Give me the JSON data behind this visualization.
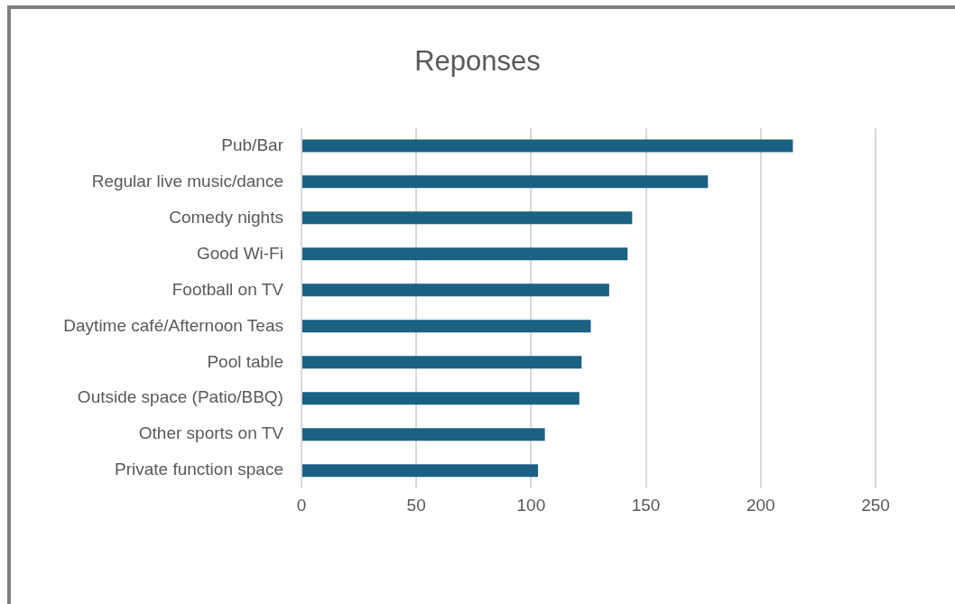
{
  "chart_data": {
    "type": "bar",
    "orientation": "horizontal",
    "title": "Reponses",
    "categories": [
      "Pub/Bar",
      "Regular live music/dance",
      "Comedy nights",
      "Good Wi-Fi",
      "Football on TV",
      "Daytime café/Afternoon Teas",
      "Pool table",
      "Outside space (Patio/BBQ)",
      "Other sports on TV",
      "Private function space"
    ],
    "values": [
      214,
      177,
      144,
      142,
      134,
      126,
      122,
      121,
      106,
      103
    ],
    "color": "#1a6184",
    "xlim": [
      0,
      250
    ],
    "xticks": [
      0,
      50,
      100,
      150,
      200,
      250
    ],
    "grid": "x"
  }
}
